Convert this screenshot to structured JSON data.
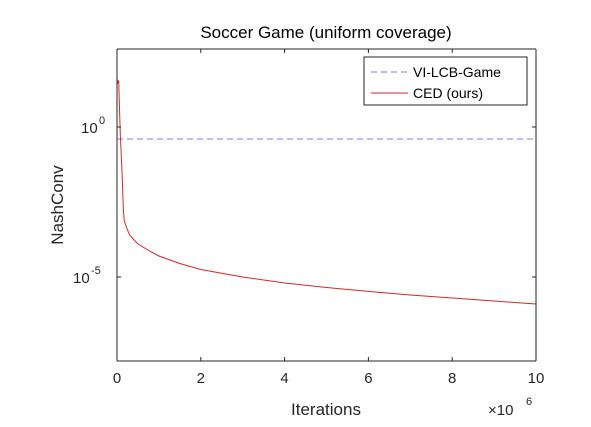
{
  "chart_data": {
    "type": "line",
    "title": "Soccer Game (uniform coverage)",
    "xlabel": "Iterations",
    "ylabel": "NashConv",
    "x_scale_multiplier": "×10",
    "x_scale_exponent": "6",
    "xlim": [
      0,
      10
    ],
    "ylim_log10": [
      -7.8,
      2.6
    ],
    "y_scale": "log",
    "x_ticks": [
      0,
      2,
      4,
      6,
      8,
      10
    ],
    "y_ticks": [
      {
        "log10": 0,
        "base": "10",
        "exp": "0"
      },
      {
        "log10": -5,
        "base": "10",
        "exp": "-5"
      }
    ],
    "grid": false,
    "legend_placement": "top-right",
    "series": [
      {
        "name": "VI-LCB-Game",
        "color": "#8080d8",
        "dash": true,
        "x": [
          0,
          10
        ],
        "log10_y": [
          -0.4,
          -0.4
        ]
      },
      {
        "name": "CED (ours)",
        "color": "#d62728",
        "dash": false,
        "x": [
          0,
          0.02,
          0.04,
          0.06,
          0.08,
          0.12,
          0.15,
          0.17,
          0.2,
          0.3,
          0.5,
          0.8,
          1.0,
          1.5,
          2,
          3,
          4,
          5,
          6,
          7,
          8,
          9,
          10
        ],
        "log10_y": [
          1.6,
          1.45,
          1.55,
          0.6,
          -0.3,
          -1.5,
          -2.7,
          -3.1,
          -3.25,
          -3.6,
          -3.9,
          -4.15,
          -4.3,
          -4.55,
          -4.75,
          -5.0,
          -5.2,
          -5.35,
          -5.48,
          -5.6,
          -5.7,
          -5.8,
          -5.9
        ]
      }
    ]
  }
}
